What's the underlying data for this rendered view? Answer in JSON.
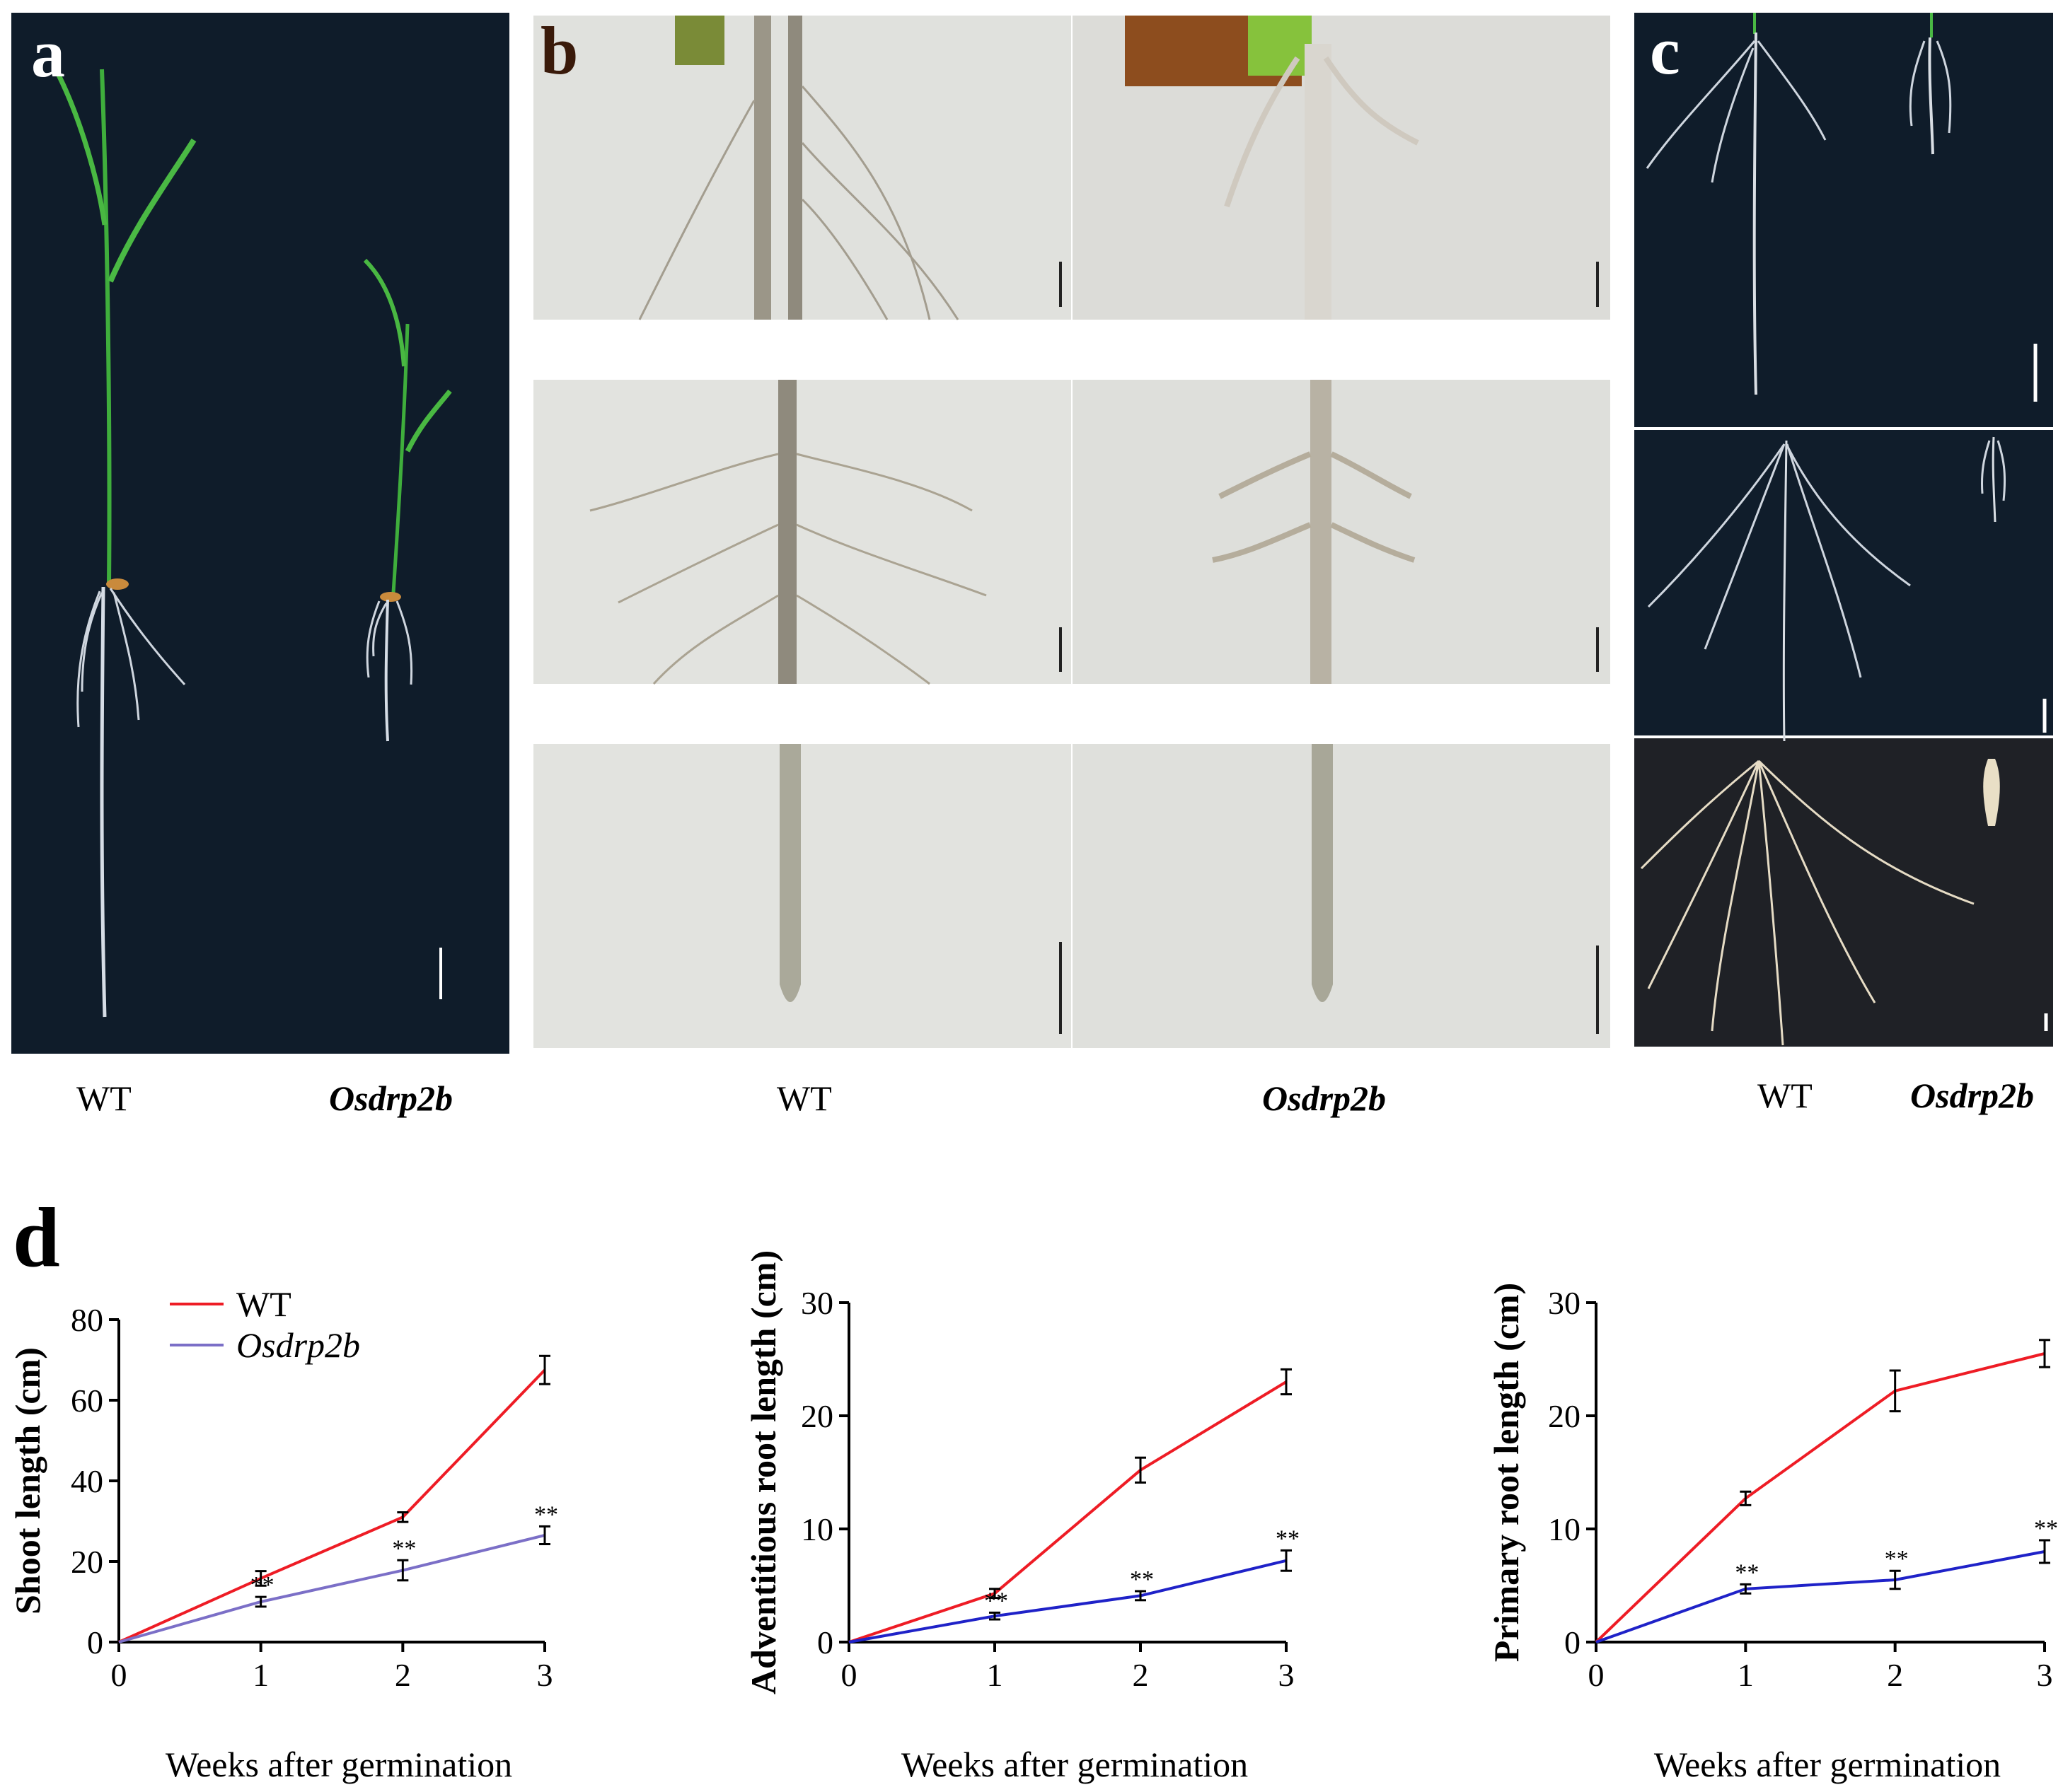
{
  "panel_labels": {
    "a": "a",
    "b": "b",
    "c": "c",
    "d": "d"
  },
  "captions": {
    "a_left": "WT",
    "a_right": "Osdrp2b",
    "b_left": "WT",
    "b_right": "Osdrp2b",
    "c_left": "WT",
    "c_right": "Osdrp2b"
  },
  "colors": {
    "wt": "#ee1c25",
    "mutant_1": "#7b6fc7",
    "mutant": "#1f22c8",
    "photo_dark": "#0f1c2a",
    "photo_light": "#e2e3df"
  },
  "chart_data": [
    {
      "type": "line",
      "x": [
        0,
        1,
        2,
        3
      ],
      "xlabel": "Weeks after germination",
      "ylabel": "Shoot length (cm)",
      "ylim": [
        0,
        80
      ],
      "yticks": [
        0,
        20,
        40,
        60,
        80
      ],
      "legend": {
        "position": "top-left",
        "entries": [
          "WT",
          "Osdrp2b"
        ]
      },
      "series": [
        {
          "name": "WT",
          "values": [
            0,
            15.8,
            31,
            67.5
          ],
          "errors": [
            0,
            1.8,
            1.2,
            3.5
          ]
        },
        {
          "name": "Osdrp2b",
          "values": [
            0,
            10,
            17.8,
            26.5
          ],
          "errors": [
            0,
            1.2,
            2.5,
            2.2
          ],
          "significance": [
            "",
            "**",
            "**",
            "**"
          ]
        }
      ]
    },
    {
      "type": "line",
      "x": [
        0,
        1,
        2,
        3
      ],
      "xlabel": "Weeks after germination",
      "ylabel": "Adventitious root length (cm)",
      "ylim": [
        0,
        30
      ],
      "yticks": [
        0,
        10,
        20,
        30
      ],
      "series": [
        {
          "name": "WT",
          "values": [
            0,
            4.3,
            15.2,
            23
          ],
          "errors": [
            0,
            0.4,
            1.1,
            1.1
          ]
        },
        {
          "name": "Osdrp2b",
          "values": [
            0,
            2.3,
            4.1,
            7.2
          ],
          "errors": [
            0,
            0.3,
            0.4,
            0.9
          ],
          "significance": [
            "",
            "**",
            "**",
            "**"
          ]
        }
      ]
    },
    {
      "type": "line",
      "x": [
        0,
        1,
        2,
        3
      ],
      "xlabel": "Weeks after germination",
      "ylabel": "Primary root length (cm)",
      "ylim": [
        0,
        30
      ],
      "yticks": [
        0,
        10,
        20,
        30
      ],
      "series": [
        {
          "name": "WT",
          "values": [
            0,
            12.7,
            22.2,
            25.5
          ],
          "errors": [
            0,
            0.6,
            1.8,
            1.2
          ]
        },
        {
          "name": "Osdrp2b",
          "values": [
            0,
            4.7,
            5.5,
            8
          ],
          "errors": [
            0,
            0.4,
            0.8,
            1.0
          ],
          "significance": [
            "",
            "**",
            "**",
            "**"
          ]
        }
      ]
    }
  ]
}
